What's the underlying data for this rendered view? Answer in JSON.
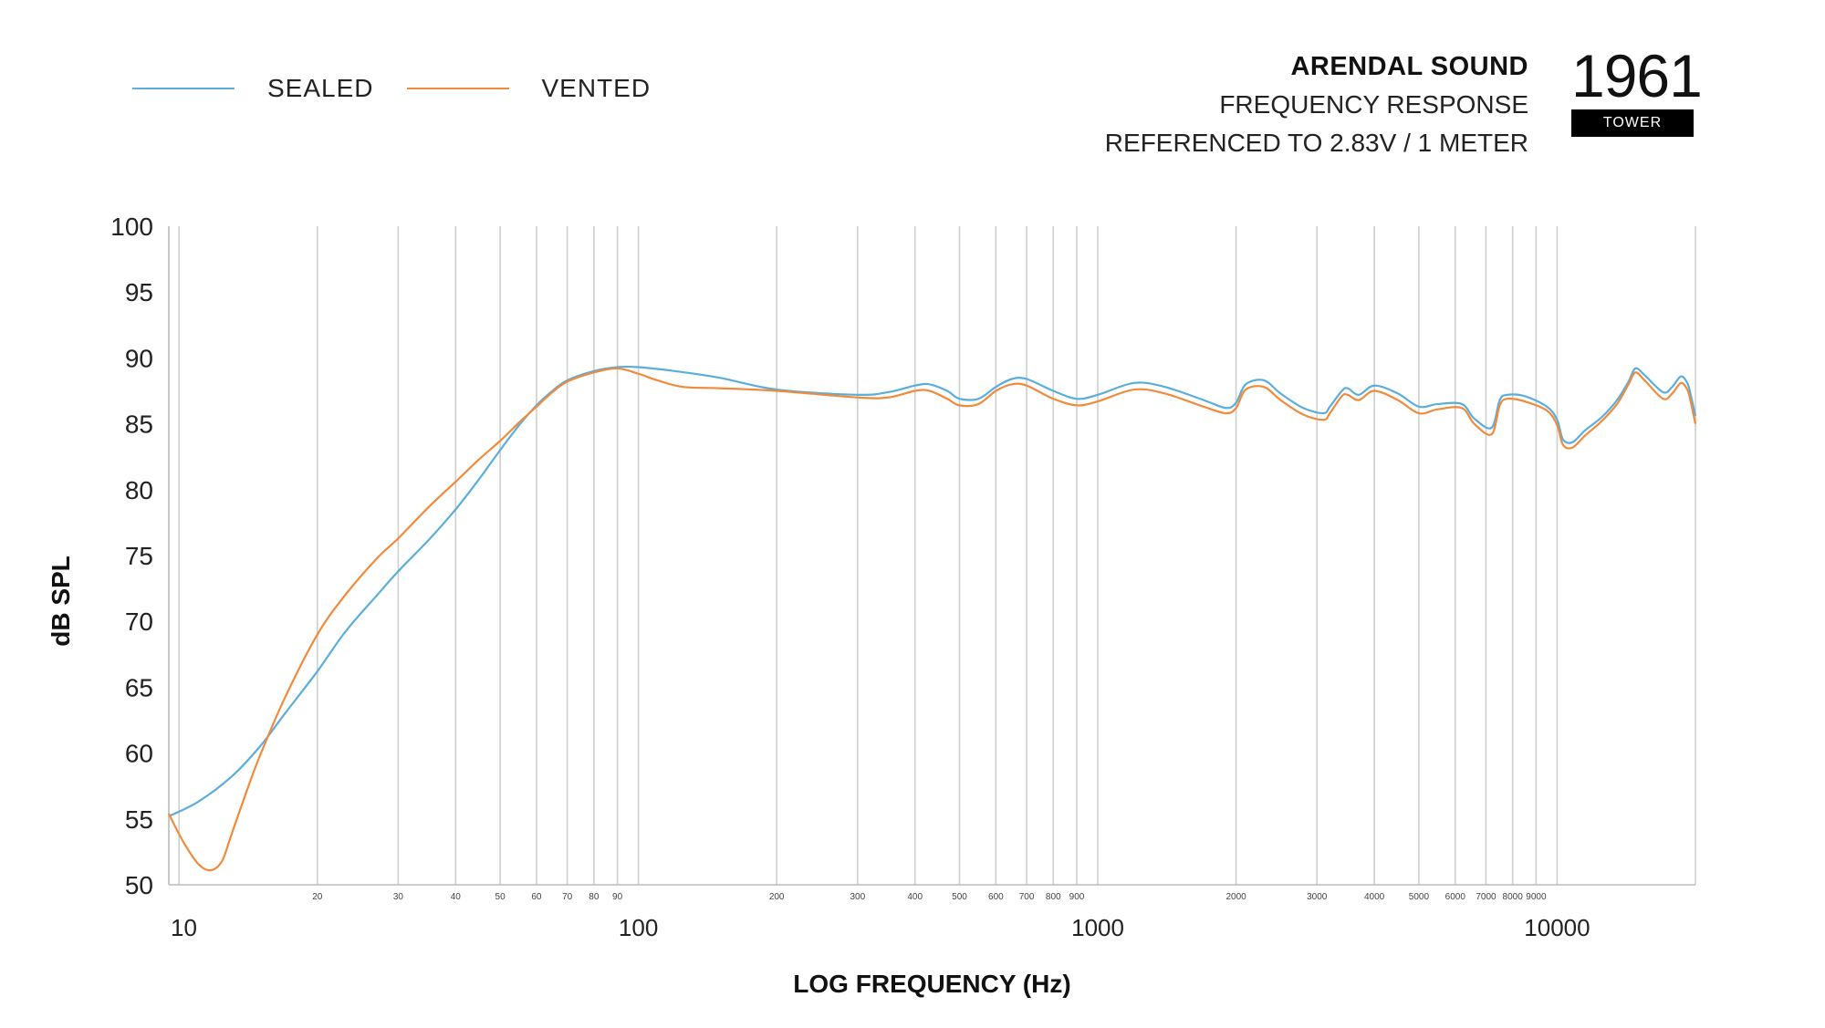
{
  "header": {
    "brand": "ARENDAL SOUND",
    "line1": "FREQUENCY RESPONSE",
    "line2": "REFERENCED TO 2.83V / 1 METER"
  },
  "logo": {
    "number": "1961",
    "tag": "TOWER"
  },
  "colors": {
    "sealed": "#5aaedc",
    "vented": "#f28a3c",
    "grid": "#cfcfcf",
    "axis": "#bbbbbb"
  },
  "chart_data": {
    "type": "line",
    "xlabel": "LOG FREQUENCY (Hz)",
    "ylabel": "dB SPL",
    "xscale": "log",
    "xlim": [
      9.5,
      20000
    ],
    "ylim": [
      50,
      100
    ],
    "grid": "vertical",
    "legend_position": "top-left",
    "y_ticks": [
      50,
      55,
      60,
      65,
      70,
      75,
      80,
      85,
      90,
      95,
      100
    ],
    "x_major_ticks": [
      {
        "value": 10,
        "label": "10"
      },
      {
        "value": 100,
        "label": "100"
      },
      {
        "value": 1000,
        "label": "1000"
      },
      {
        "value": 10000,
        "label": "10000"
      }
    ],
    "x_minor_ticks": [
      {
        "value": 20,
        "label": "20"
      },
      {
        "value": 30,
        "label": "30"
      },
      {
        "value": 40,
        "label": "40"
      },
      {
        "value": 50,
        "label": "50"
      },
      {
        "value": 60,
        "label": "60"
      },
      {
        "value": 70,
        "label": "70"
      },
      {
        "value": 80,
        "label": "80"
      },
      {
        "value": 90,
        "label": "90"
      },
      {
        "value": 200,
        "label": "200"
      },
      {
        "value": 300,
        "label": "300"
      },
      {
        "value": 400,
        "label": "400"
      },
      {
        "value": 500,
        "label": "500"
      },
      {
        "value": 600,
        "label": "600"
      },
      {
        "value": 700,
        "label": "700"
      },
      {
        "value": 800,
        "label": "800"
      },
      {
        "value": 900,
        "label": "900"
      },
      {
        "value": 2000,
        "label": "2000"
      },
      {
        "value": 3000,
        "label": "3000"
      },
      {
        "value": 4000,
        "label": "4000"
      },
      {
        "value": 5000,
        "label": "5000"
      },
      {
        "value": 6000,
        "label": "6000"
      },
      {
        "value": 7000,
        "label": "7000"
      },
      {
        "value": 8000,
        "label": "8000"
      },
      {
        "value": 9000,
        "label": "9000"
      }
    ],
    "series": [
      {
        "name": "SEALED",
        "color": "#5aaedc",
        "points": [
          [
            9.5,
            55.2
          ],
          [
            11,
            56.3
          ],
          [
            13,
            58.2
          ],
          [
            15,
            60.5
          ],
          [
            17,
            63.0
          ],
          [
            20,
            66.2
          ],
          [
            23,
            69.2
          ],
          [
            27,
            72.0
          ],
          [
            30,
            73.8
          ],
          [
            35,
            76.2
          ],
          [
            40,
            78.5
          ],
          [
            45,
            80.8
          ],
          [
            50,
            83.0
          ],
          [
            55,
            84.9
          ],
          [
            60,
            86.4
          ],
          [
            65,
            87.5
          ],
          [
            70,
            88.3
          ],
          [
            80,
            89.0
          ],
          [
            90,
            89.3
          ],
          [
            100,
            89.3
          ],
          [
            120,
            89.0
          ],
          [
            150,
            88.5
          ],
          [
            200,
            87.6
          ],
          [
            300,
            87.2
          ],
          [
            350,
            87.4
          ],
          [
            400,
            87.9
          ],
          [
            430,
            88.0
          ],
          [
            470,
            87.5
          ],
          [
            500,
            86.9
          ],
          [
            550,
            86.9
          ],
          [
            600,
            87.8
          ],
          [
            650,
            88.4
          ],
          [
            700,
            88.4
          ],
          [
            800,
            87.5
          ],
          [
            900,
            86.9
          ],
          [
            1000,
            87.2
          ],
          [
            1200,
            88.1
          ],
          [
            1400,
            87.8
          ],
          [
            1700,
            86.8
          ],
          [
            1900,
            86.2
          ],
          [
            2000,
            86.6
          ],
          [
            2100,
            88.0
          ],
          [
            2300,
            88.3
          ],
          [
            2500,
            87.3
          ],
          [
            2800,
            86.2
          ],
          [
            3100,
            85.8
          ],
          [
            3200,
            86.3
          ],
          [
            3400,
            87.5
          ],
          [
            3500,
            87.7
          ],
          [
            3700,
            87.2
          ],
          [
            4000,
            87.9
          ],
          [
            4500,
            87.3
          ],
          [
            5000,
            86.3
          ],
          [
            5500,
            86.5
          ],
          [
            6200,
            86.5
          ],
          [
            6600,
            85.4
          ],
          [
            7200,
            84.7
          ],
          [
            7500,
            86.8
          ],
          [
            7800,
            87.2
          ],
          [
            8500,
            87.1
          ],
          [
            9500,
            86.3
          ],
          [
            10000,
            85.3
          ],
          [
            10300,
            83.8
          ],
          [
            10800,
            83.6
          ],
          [
            11500,
            84.5
          ],
          [
            12500,
            85.5
          ],
          [
            13500,
            86.8
          ],
          [
            14300,
            88.2
          ],
          [
            14800,
            89.2
          ],
          [
            15500,
            88.7
          ],
          [
            17000,
            87.4
          ],
          [
            17800,
            87.8
          ],
          [
            18600,
            88.6
          ],
          [
            19200,
            88.1
          ],
          [
            19500,
            87.3
          ],
          [
            20000,
            85.6
          ]
        ]
      },
      {
        "name": "VENTED",
        "color": "#f28a3c",
        "points": [
          [
            9.5,
            55.4
          ],
          [
            10.2,
            53.3
          ],
          [
            11,
            51.6
          ],
          [
            11.7,
            51.1
          ],
          [
            12.4,
            51.8
          ],
          [
            13,
            53.8
          ],
          [
            14,
            57.0
          ],
          [
            15,
            59.8
          ],
          [
            17,
            64.2
          ],
          [
            20,
            69.0
          ],
          [
            23,
            72.0
          ],
          [
            27,
            74.8
          ],
          [
            30,
            76.3
          ],
          [
            35,
            78.7
          ],
          [
            40,
            80.6
          ],
          [
            45,
            82.3
          ],
          [
            50,
            83.7
          ],
          [
            55,
            85.1
          ],
          [
            60,
            86.3
          ],
          [
            65,
            87.4
          ],
          [
            70,
            88.2
          ],
          [
            80,
            88.9
          ],
          [
            90,
            89.2
          ],
          [
            100,
            88.8
          ],
          [
            110,
            88.3
          ],
          [
            125,
            87.8
          ],
          [
            150,
            87.7
          ],
          [
            200,
            87.5
          ],
          [
            300,
            87.0
          ],
          [
            350,
            87.0
          ],
          [
            400,
            87.5
          ],
          [
            430,
            87.5
          ],
          [
            470,
            86.9
          ],
          [
            500,
            86.4
          ],
          [
            550,
            86.5
          ],
          [
            600,
            87.5
          ],
          [
            650,
            88.0
          ],
          [
            700,
            87.9
          ],
          [
            800,
            86.9
          ],
          [
            900,
            86.4
          ],
          [
            1000,
            86.7
          ],
          [
            1200,
            87.6
          ],
          [
            1400,
            87.3
          ],
          [
            1700,
            86.3
          ],
          [
            1900,
            85.8
          ],
          [
            2000,
            86.2
          ],
          [
            2100,
            87.6
          ],
          [
            2300,
            87.8
          ],
          [
            2500,
            86.8
          ],
          [
            2800,
            85.7
          ],
          [
            3100,
            85.3
          ],
          [
            3200,
            85.8
          ],
          [
            3400,
            87.1
          ],
          [
            3500,
            87.2
          ],
          [
            3700,
            86.8
          ],
          [
            4000,
            87.5
          ],
          [
            4500,
            86.8
          ],
          [
            5000,
            85.8
          ],
          [
            5500,
            86.1
          ],
          [
            6200,
            86.2
          ],
          [
            6600,
            85.0
          ],
          [
            7200,
            84.2
          ],
          [
            7500,
            86.4
          ],
          [
            7800,
            86.9
          ],
          [
            8500,
            86.7
          ],
          [
            9500,
            86.0
          ],
          [
            10000,
            84.9
          ],
          [
            10300,
            83.4
          ],
          [
            10800,
            83.2
          ],
          [
            11500,
            84.1
          ],
          [
            12500,
            85.2
          ],
          [
            13500,
            86.5
          ],
          [
            14300,
            88.0
          ],
          [
            14800,
            88.9
          ],
          [
            15500,
            88.3
          ],
          [
            17000,
            86.9
          ],
          [
            17800,
            87.3
          ],
          [
            18600,
            88.1
          ],
          [
            19200,
            87.6
          ],
          [
            19500,
            86.8
          ],
          [
            20000,
            85.0
          ]
        ]
      }
    ]
  }
}
